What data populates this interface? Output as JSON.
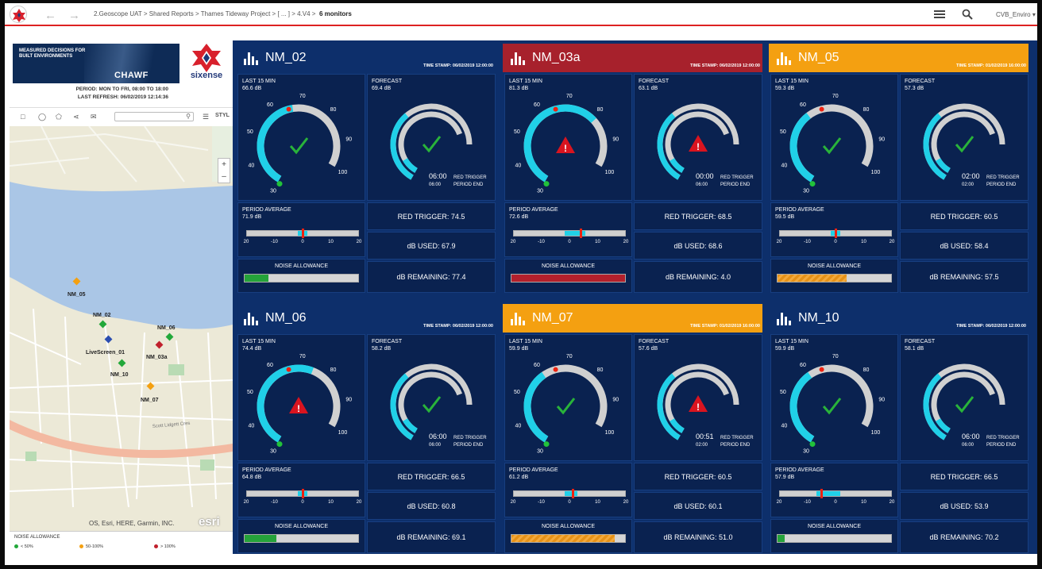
{
  "topbar": {
    "breadcrumb": "2.Geoscope UAT  > Shared Reports  > Thames Tideway Project  > [ ... ]  > 4.V4  >",
    "current": "6 monitors",
    "user": "CVB_Enviro",
    "icons": [
      "app-logo-icon",
      "back-arrow-icon",
      "forward-arrow-icon",
      "menu-icon",
      "search-icon",
      "chevron-down-icon"
    ]
  },
  "sidebar": {
    "banner_text": "MEASURED DECISIONS FOR BUILT ENVIRONMENTS",
    "banner_title": "CHAWF",
    "brand": "sixense",
    "period": "PERIOD: MON TO FRI, 08:00 TO 18:00",
    "last_refresh": "LAST REFRESH:  06/02/2019 12:14:36",
    "map_tools_label": "STYL",
    "map_credit": "OS, Esri, HERE, Garmin, INC.",
    "map_brand": "esri",
    "map_labels": [
      "NM_05",
      "NM_02",
      "NM_06",
      "LiveScreen_01",
      "NM_03a",
      "NM_10",
      "NM_07"
    ],
    "legend": {
      "title": "NOISE ALLOWANCE",
      "items": [
        {
          "label": "< 50%",
          "color": "#22a83a"
        },
        {
          "label": "50-100%",
          "color": "#f4a011"
        },
        {
          "label": "> 100%",
          "color": "#c0202c"
        }
      ]
    }
  },
  "labels": {
    "last15": "LAST 15 MIN",
    "forecast": "FORECAST",
    "period_avg": "PERIOD AVERAGE",
    "noise_allowance": "NOISE ALLOWANCE",
    "red_trigger_legend": "RED TRIGGER",
    "period_end_legend": "PERIOD END"
  },
  "monitors": [
    {
      "name": "NM_02",
      "status": "normal",
      "timestamp": "TIME STAMP:  06/02/2019 12:00:00",
      "last15": "66.6 dB",
      "last15_value": 66.6,
      "last15_state": "ok",
      "forecast": "69.4 dB",
      "forecast_value": 69.4,
      "forecast_state": "ok",
      "forecast_time": "06:00",
      "period_end_time": "06:00",
      "period_avg": "71.9 dB",
      "period_avg_offset": 0,
      "red_trigger": "RED TRIGGER: 74.5",
      "db_used": "dB USED: 67.9",
      "db_remaining": "dB REMAINING: 77.4",
      "noise_allowance_pct": 21,
      "noise_color": "green"
    },
    {
      "name": "NM_03a",
      "status": "red",
      "timestamp": "TIME STAMP:  06/02/2019 12:00:00",
      "last15": "81.3 dB",
      "last15_value": 81.3,
      "last15_state": "alert",
      "forecast": "63.1 dB",
      "forecast_value": 63.1,
      "forecast_state": "alert",
      "forecast_time": "00:00",
      "period_end_time": "06:00",
      "period_avg": "72.6 dB",
      "period_avg_offset": 4,
      "red_trigger": "RED TRIGGER: 68.5",
      "db_used": "dB USED: 68.6",
      "db_remaining": "dB REMAINING: 4.0",
      "noise_allowance_pct": 100,
      "noise_color": "red"
    },
    {
      "name": "NM_05",
      "status": "orange",
      "timestamp": "TIME STAMP:  01/02/2019 16:00:00",
      "last15": "59.3 dB",
      "last15_value": 59.3,
      "last15_state": "ok",
      "forecast": "57.3 dB",
      "forecast_value": 57.3,
      "forecast_state": "ok",
      "forecast_time": "02:00",
      "period_end_time": "02:00",
      "period_avg": "59.5 dB",
      "period_avg_offset": 0,
      "red_trigger": "RED TRIGGER: 60.5",
      "db_used": "dB USED: 58.4",
      "db_remaining": "dB REMAINING: 57.5",
      "noise_allowance_pct": 61,
      "noise_color": "orange"
    },
    {
      "name": "NM_06",
      "status": "normal",
      "timestamp": "TIME STAMP:  06/02/2019 12:00:00",
      "last15": "74.4 dB",
      "last15_value": 74.4,
      "last15_state": "alert",
      "forecast": "58.2 dB",
      "forecast_value": 58.2,
      "forecast_state": "ok",
      "forecast_time": "06:00",
      "period_end_time": "06:00",
      "period_avg": "64.8 dB",
      "period_avg_offset": 0,
      "red_trigger": "RED TRIGGER: 66.5",
      "db_used": "dB USED: 60.8",
      "db_remaining": "dB REMAINING: 69.1",
      "noise_allowance_pct": 28,
      "noise_color": "green"
    },
    {
      "name": "NM_07",
      "status": "orange",
      "timestamp": "TIME STAMP:  01/02/2019 16:00:00",
      "last15": "59.9 dB",
      "last15_value": 59.9,
      "last15_state": "ok",
      "forecast": "57.6 dB",
      "forecast_value": 57.6,
      "forecast_state": "alert",
      "forecast_time": "00:51",
      "period_end_time": "02:00",
      "period_avg": "61.2 dB",
      "period_avg_offset": 1,
      "red_trigger": "RED TRIGGER: 60.5",
      "db_used": "dB USED: 60.1",
      "db_remaining": "dB REMAINING: 51.0",
      "noise_allowance_pct": 91,
      "noise_color": "orange"
    },
    {
      "name": "NM_10",
      "status": "normal",
      "timestamp": "TIME STAMP:  06/02/2019 12:00:00",
      "last15": "59.9 dB",
      "last15_value": 59.9,
      "last15_state": "ok",
      "forecast": "58.1 dB",
      "forecast_value": 58.1,
      "forecast_state": "ok",
      "forecast_time": "06:00",
      "period_end_time": "06:00",
      "period_avg": "57.9 dB",
      "period_avg_offset": -5,
      "red_trigger": "RED TRIGGER: 66.5",
      "db_used": "dB USED: 53.9",
      "db_remaining": "dB REMAINING: 70.2",
      "noise_allowance_pct": 6,
      "noise_color": "green"
    }
  ],
  "colors": {
    "navy": "#0d2f6b",
    "tile": "#0a2250",
    "red": "#a7212c",
    "orange": "#f4a011",
    "cyan": "#20d0e8",
    "green": "#25a33a"
  }
}
